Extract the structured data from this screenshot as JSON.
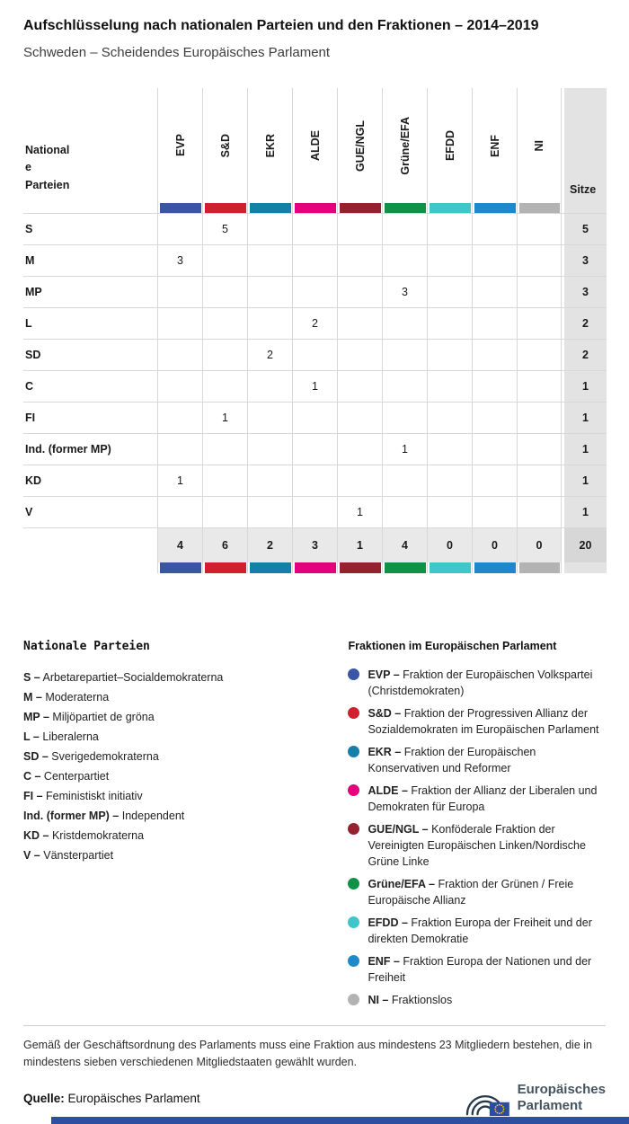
{
  "header": {
    "title": "Aufschlüsselung nach nationalen Parteien und den Fraktionen – 2014–2019",
    "subtitle": "Schweden – Scheidendes Europäisches Parlament"
  },
  "chart_data": {
    "type": "table",
    "corner_header": "National\ne\nParteien",
    "seats_header": "Sitze",
    "groups": [
      {
        "abbr": "EVP",
        "color": "#3a55a4"
      },
      {
        "abbr": "S&D",
        "color": "#d0202e"
      },
      {
        "abbr": "EKR",
        "color": "#1480a8"
      },
      {
        "abbr": "ALDE",
        "color": "#e4007d"
      },
      {
        "abbr": "GUE/NGL",
        "color": "#93212e"
      },
      {
        "abbr": "Grüne/EFA",
        "color": "#0f9247"
      },
      {
        "abbr": "EFDD",
        "color": "#3fc6c9"
      },
      {
        "abbr": "ENF",
        "color": "#1e88ca"
      },
      {
        "abbr": "NI",
        "color": "#b3b3b3"
      }
    ],
    "rows": [
      {
        "party": "S",
        "cells": [
          null,
          5,
          null,
          null,
          null,
          null,
          null,
          null,
          null
        ],
        "seats": 5
      },
      {
        "party": "M",
        "cells": [
          3,
          null,
          null,
          null,
          null,
          null,
          null,
          null,
          null
        ],
        "seats": 3
      },
      {
        "party": "MP",
        "cells": [
          null,
          null,
          null,
          null,
          null,
          3,
          null,
          null,
          null
        ],
        "seats": 3
      },
      {
        "party": "L",
        "cells": [
          null,
          null,
          null,
          2,
          null,
          null,
          null,
          null,
          null
        ],
        "seats": 2
      },
      {
        "party": "SD",
        "cells": [
          null,
          null,
          2,
          null,
          null,
          null,
          null,
          null,
          null
        ],
        "seats": 2
      },
      {
        "party": "C",
        "cells": [
          null,
          null,
          null,
          1,
          null,
          null,
          null,
          null,
          null
        ],
        "seats": 1
      },
      {
        "party": "FI",
        "cells": [
          null,
          1,
          null,
          null,
          null,
          null,
          null,
          null,
          null
        ],
        "seats": 1
      },
      {
        "party": "Ind. (former MP)",
        "cells": [
          null,
          null,
          null,
          null,
          null,
          1,
          null,
          null,
          null
        ],
        "seats": 1
      },
      {
        "party": "KD",
        "cells": [
          1,
          null,
          null,
          null,
          null,
          null,
          null,
          null,
          null
        ],
        "seats": 1
      },
      {
        "party": "V",
        "cells": [
          null,
          null,
          null,
          null,
          1,
          null,
          null,
          null,
          null
        ],
        "seats": 1
      }
    ],
    "totals": {
      "cells": [
        4,
        6,
        2,
        3,
        1,
        4,
        0,
        0,
        0
      ],
      "seats": 20
    }
  },
  "legend_parties": {
    "heading": "Nationale Parteien",
    "items": [
      {
        "abbr": "S –",
        "name": "Arbetarepartiet–Socialdemokraterna"
      },
      {
        "abbr": "M –",
        "name": "Moderaterna"
      },
      {
        "abbr": "MP –",
        "name": "Miljöpartiet de gröna"
      },
      {
        "abbr": "L –",
        "name": "Liberalerna"
      },
      {
        "abbr": "SD –",
        "name": "Sverigedemokraterna"
      },
      {
        "abbr": "C –",
        "name": "Centerpartiet"
      },
      {
        "abbr": "FI –",
        "name": "Feministiskt initiativ"
      },
      {
        "abbr": "Ind. (former MP) –",
        "name": "Independent"
      },
      {
        "abbr": "KD –",
        "name": "Kristdemokraterna"
      },
      {
        "abbr": "V –",
        "name": "Vänsterpartiet"
      }
    ]
  },
  "legend_groups": {
    "heading": "Fraktionen im Europäischen Parlament",
    "items": [
      {
        "abbr": "EVP –",
        "name": "Fraktion der Europäischen Volkspartei (Christdemokraten)",
        "color": "#3a55a4"
      },
      {
        "abbr": "S&D –",
        "name": "Fraktion der Progressiven Allianz der Sozialdemokraten im Europäischen Parlament",
        "color": "#d0202e"
      },
      {
        "abbr": "EKR –",
        "name": "Fraktion der Europäischen Konservativen und Reformer",
        "color": "#1480a8"
      },
      {
        "abbr": "ALDE –",
        "name": "Fraktion der Allianz der Liberalen und Demokraten für Europa",
        "color": "#e4007d"
      },
      {
        "abbr": "GUE/NGL –",
        "name": "Konföderale Fraktion der Vereinigten Europäischen Linken/Nordische Grüne Linke",
        "color": "#93212e"
      },
      {
        "abbr": "Grüne/EFA –",
        "name": "Fraktion der Grünen / Freie Europäische Allianz",
        "color": "#0f9247"
      },
      {
        "abbr": "EFDD –",
        "name": "Fraktion Europa der Freiheit und der direkten Demokratie",
        "color": "#3fc6c9"
      },
      {
        "abbr": "ENF –",
        "name": "Fraktion Europa der Nationen und der Freiheit",
        "color": "#1e88ca"
      },
      {
        "abbr": "NI –",
        "name": "Fraktionslos",
        "color": "#b3b3b3"
      }
    ]
  },
  "footer": {
    "note": "Gemäß der Geschäftsordnung des Parlaments muss eine Fraktion aus mindestens 23 Mitgliedern bestehen, die in mindestens sieben verschiedenen Mitgliedstaaten gewählt wurden.",
    "source_label": "Quelle:",
    "source": "Europäisches Parlament",
    "logo_line1": "Europäisches",
    "logo_line2": "Parlament"
  },
  "colors": {
    "footer_strip": "#2c4fa0",
    "seats_column_bg": "#e3e3e3",
    "totals_row_bg": "#e9e9e9"
  }
}
